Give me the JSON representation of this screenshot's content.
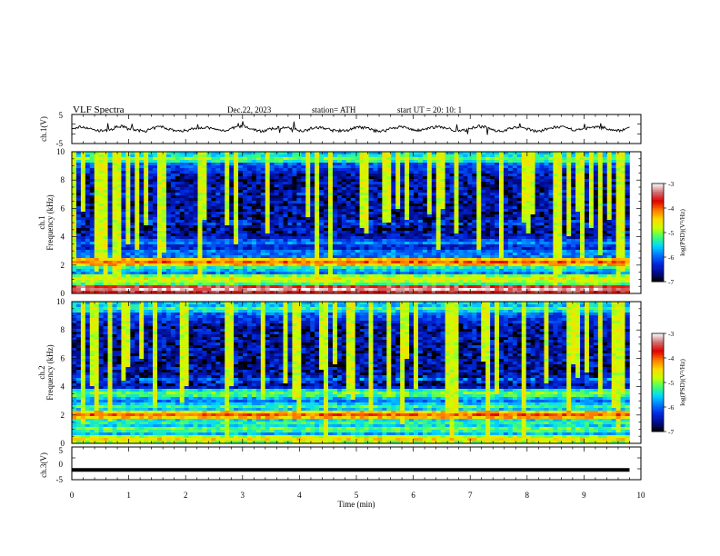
{
  "header": {
    "title": "VLF  Spectra",
    "date": "Dec.22, 2023",
    "station": "station= ATH",
    "start": "start  UT  =    20: 10: 1"
  },
  "colors": {
    "waveform": "#000000",
    "colormap": [
      "#000000",
      "#000c8c",
      "#0028e0",
      "#0078ff",
      "#00d8ff",
      "#40ff70",
      "#c8ff00",
      "#ffd800",
      "#ff7800",
      "#e00000",
      "#d07070",
      "#ffffff"
    ]
  },
  "chart_data": [
    {
      "type": "line",
      "panel": "ch1-waveform",
      "ylabel": "ch.1(V)",
      "ylim": [
        -5,
        5
      ],
      "y_ticks": [
        5,
        -5
      ],
      "x_range_min": [
        0,
        10
      ],
      "description_values": "trace hovering near 0 V with small fluctuations (about ±1 V) and occasional spikes"
    },
    {
      "type": "heatmap",
      "panel": "ch1-spectrogram",
      "ylabel_channel": "ch.1",
      "ylabel": "Frequency  (kHz)",
      "ylim": [
        0,
        10
      ],
      "y_ticks": [
        0,
        2,
        4,
        6,
        8,
        10
      ],
      "x_range_min": [
        0,
        10
      ],
      "data_extent_min": 9.8,
      "colorbar": {
        "label": "log(PSD)(V²/Hz)",
        "range": [
          -7,
          -3
        ],
        "ticks": [
          "-3",
          "-4",
          "-5",
          "-6",
          "-7"
        ]
      },
      "bands": [
        {
          "f_khz": 0.3,
          "level": -3.2
        },
        {
          "f_khz": 0.6,
          "level": -5.5
        },
        {
          "f_khz": 1.0,
          "level": -4.5
        },
        {
          "f_khz": 1.7,
          "level": -5.5
        },
        {
          "f_khz": 2.1,
          "level": -4.8
        },
        {
          "f_khz": 2.2,
          "level": -4.0
        },
        {
          "f_khz": 3.0,
          "level": -6.0
        },
        {
          "f_khz": 3.6,
          "level": -5.8
        },
        {
          "f_khz": 5.0,
          "level": -6.0
        },
        {
          "f_khz": 7.0,
          "level": -6.2
        },
        {
          "f_khz": 9.5,
          "level": -5.0
        }
      ]
    },
    {
      "type": "heatmap",
      "panel": "ch2-spectrogram",
      "ylabel_channel": "ch.2",
      "ylabel": "Frequency  (kHz)",
      "ylim": [
        0,
        10
      ],
      "y_ticks": [
        0,
        2,
        4,
        6,
        8,
        10
      ],
      "x_range_min": [
        0,
        10
      ],
      "data_extent_min": 9.8,
      "colorbar": {
        "label": "log(PSD)(V²/Hz)",
        "range": [
          -7,
          -3
        ],
        "ticks": [
          "-3",
          "-4",
          "-5",
          "-6",
          "-7"
        ]
      },
      "bands": [
        {
          "f_khz": 0.3,
          "level": -4.5
        },
        {
          "f_khz": 1.0,
          "level": -5.0
        },
        {
          "f_khz": 1.5,
          "level": -5.2
        },
        {
          "f_khz": 2.0,
          "level": -4.0
        },
        {
          "f_khz": 2.6,
          "level": -5.2
        },
        {
          "f_khz": 3.5,
          "level": -5.0
        },
        {
          "f_khz": 4.5,
          "level": -5.8
        },
        {
          "f_khz": 6.0,
          "level": -6.3
        },
        {
          "f_khz": 9.5,
          "level": -5.2
        }
      ]
    },
    {
      "type": "line",
      "panel": "ch3-waveform",
      "ylabel": "ch.3(V)",
      "ylim": [
        -5,
        5
      ],
      "y_ticks": [
        5,
        0,
        -5
      ],
      "x": [
        0,
        9.8
      ],
      "y": [
        -2,
        -2
      ],
      "xlabel": "Time  (min)",
      "x_ticks": [
        0,
        1,
        2,
        3,
        4,
        5,
        6,
        7,
        8,
        9,
        10
      ]
    }
  ]
}
